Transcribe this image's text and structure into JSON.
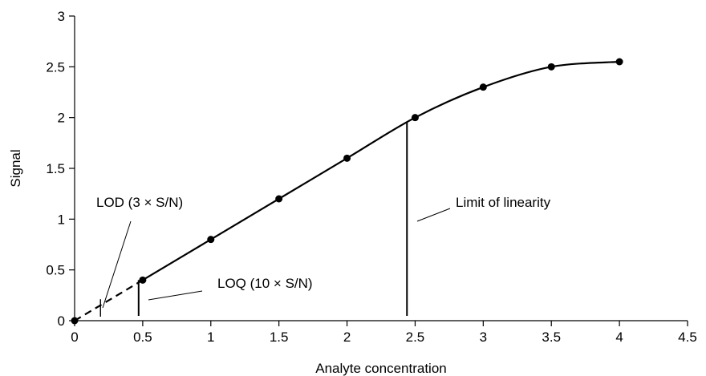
{
  "chart_data": {
    "type": "scatter",
    "title": "",
    "xlabel": "Analyte concentration",
    "ylabel": "Signal",
    "xlim": [
      0,
      4.5
    ],
    "ylim": [
      0,
      3
    ],
    "x_ticks": [
      0,
      0.5,
      1,
      1.5,
      2,
      2.5,
      3,
      3.5,
      4,
      4.5
    ],
    "x_tick_labels": [
      "0",
      "0.5",
      "1",
      "1.5",
      "2",
      "2.5",
      "3",
      "3.5",
      "4",
      "4.5"
    ],
    "y_ticks": [
      0,
      0.5,
      1,
      1.5,
      2,
      2.5,
      3
    ],
    "y_tick_labels": [
      "0",
      "0.5",
      "1",
      "1.5",
      "2",
      "2.5",
      "3"
    ],
    "grid": false,
    "series": [
      {
        "x": [
          0,
          0.5,
          1,
          1.5,
          2,
          2.5,
          3,
          3.5,
          4
        ],
        "y": [
          0,
          0.4,
          0.8,
          1.2,
          1.6,
          2.0,
          2.3,
          2.5,
          2.55
        ],
        "style": "solid line with filled circle markers; dashed from 0 to 0.5"
      }
    ],
    "markers": [
      {
        "name": "LOD",
        "x": 0.19,
        "y": 0.18
      },
      {
        "name": "LOQ",
        "x": 0.47,
        "y": 0.4
      },
      {
        "name": "linearity-limit",
        "x": 2.44,
        "y": 1.96
      }
    ],
    "annotations": [
      {
        "text": "LOD (3 × S/N)",
        "points_to": "LOD"
      },
      {
        "text": "LOQ (10 × S/N)",
        "points_to": "LOQ"
      },
      {
        "text": "Limit of linearity",
        "points_to": "linearity-limit"
      }
    ]
  }
}
